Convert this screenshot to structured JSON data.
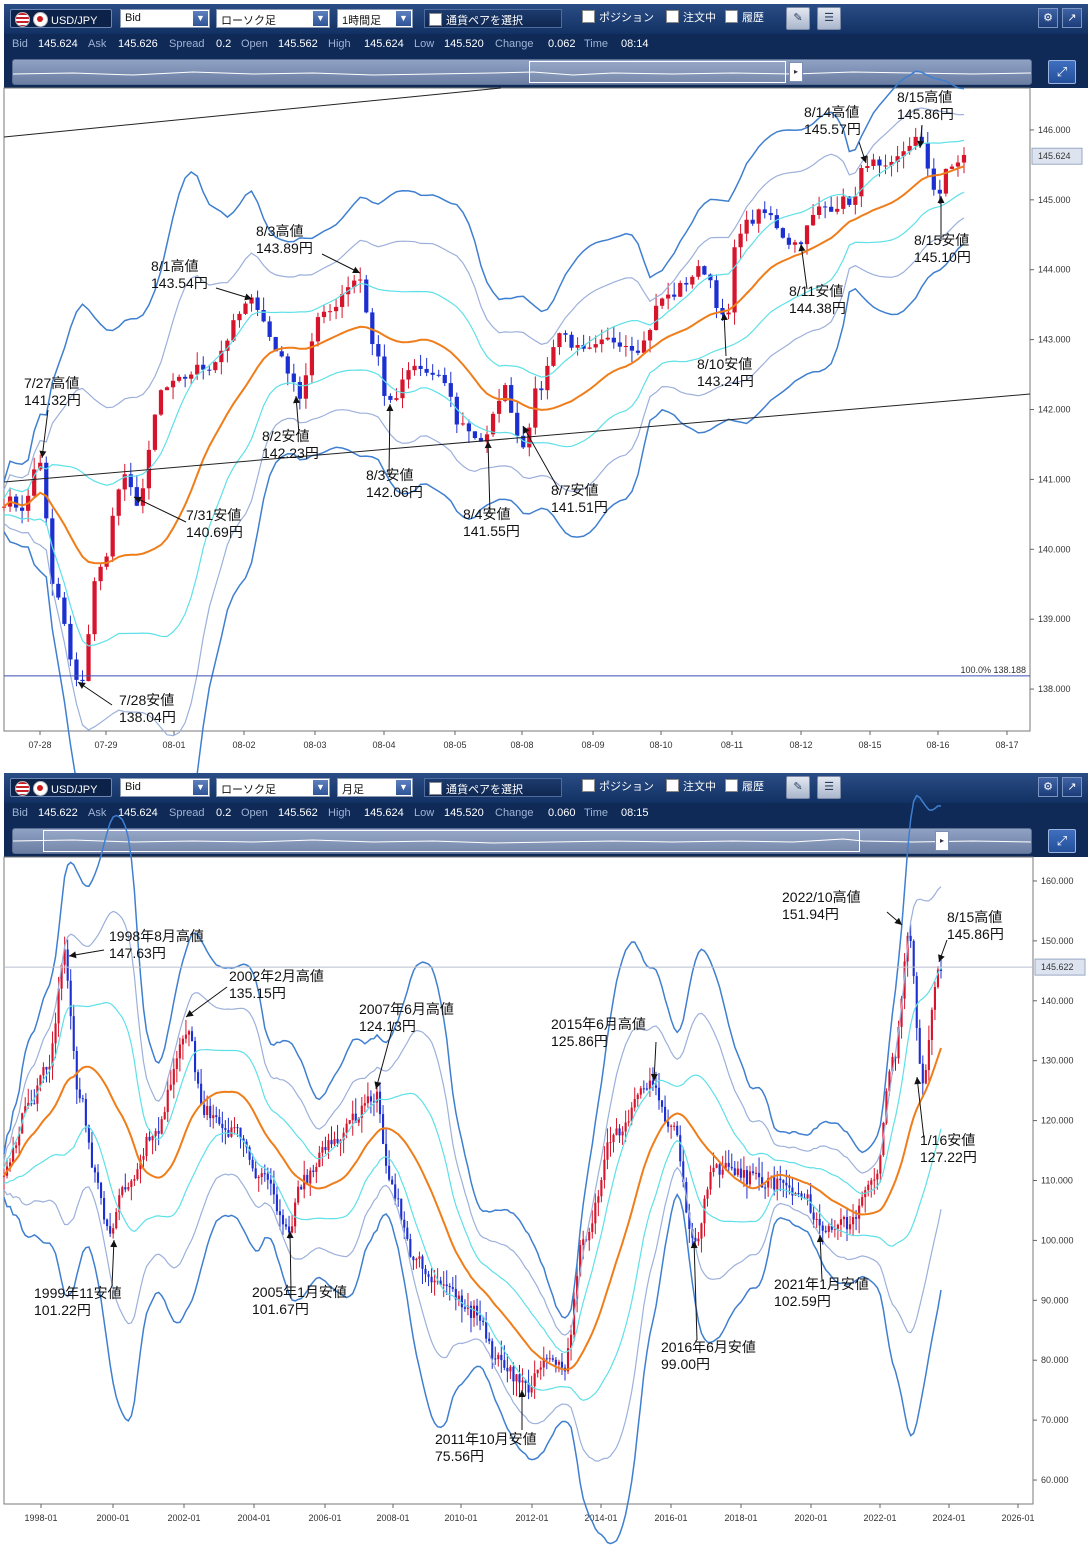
{
  "panels": [
    {
      "id": "p1",
      "toolbar": {
        "symbol": "USD/JPY",
        "price_side": "Bid",
        "chart_type": "ローソク足",
        "timeframe": "1時間足",
        "pair_select_label": "通貨ペアを選択",
        "position_label": "ポジション",
        "orders_label": "注文中",
        "history_label": "履歴"
      },
      "info": {
        "bid_label": "Bid",
        "bid": "145.624",
        "ask_label": "Ask",
        "ask": "145.626",
        "spread_label": "Spread",
        "spread": "0.2",
        "open_label": "Open",
        "open": "145.562",
        "high_label": "High",
        "high": "145.624",
        "low_label": "Low",
        "low": "145.520",
        "change_label": "Change",
        "change": "0.062",
        "time_label": "Time",
        "time": "08:14"
      },
      "current_price_tag": "145.624",
      "level_label": "100.0%  138.188",
      "chart_data": {
        "type": "candlestick",
        "instrument": "USD/JPY",
        "timeframe": "1時間足",
        "indicators": [
          "Bollinger Bands",
          "Moving Average"
        ],
        "ylim": [
          137.4,
          146.6
        ],
        "y_ticks": [
          "146.000",
          "145.000",
          "144.000",
          "143.000",
          "142.000",
          "141.000",
          "140.000",
          "139.000",
          "138.000"
        ],
        "x_ticks": [
          "07-28",
          "07-29",
          "08-01",
          "08-02",
          "08-03",
          "08-04",
          "08-05",
          "08-08",
          "08-09",
          "08-10",
          "08-11",
          "08-12",
          "08-15",
          "08-16",
          "08-17"
        ],
        "horizontal_level": 138.188,
        "current_price": 145.624,
        "anchors": [
          [
            0,
            140.7
          ],
          [
            20,
            140.6
          ],
          [
            35,
            141.3
          ],
          [
            50,
            139.4
          ],
          [
            75,
            138.04
          ],
          [
            95,
            139.7
          ],
          [
            120,
            141.0
          ],
          [
            133,
            140.69
          ],
          [
            160,
            142.3
          ],
          [
            200,
            142.6
          ],
          [
            250,
            143.54
          ],
          [
            275,
            142.8
          ],
          [
            295,
            142.23
          ],
          [
            315,
            143.3
          ],
          [
            355,
            143.89
          ],
          [
            370,
            142.9
          ],
          [
            385,
            142.06
          ],
          [
            410,
            142.6
          ],
          [
            440,
            142.4
          ],
          [
            455,
            141.8
          ],
          [
            480,
            141.55
          ],
          [
            500,
            142.3
          ],
          [
            518,
            141.51
          ],
          [
            535,
            142.3
          ],
          [
            555,
            143.1
          ],
          [
            580,
            142.8
          ],
          [
            610,
            143.0
          ],
          [
            635,
            142.9
          ],
          [
            660,
            143.6
          ],
          [
            700,
            144.0
          ],
          [
            722,
            143.24
          ],
          [
            735,
            144.6
          ],
          [
            760,
            144.8
          ],
          [
            790,
            144.38
          ],
          [
            820,
            144.9
          ],
          [
            850,
            145.0
          ],
          [
            862,
            145.57
          ],
          [
            880,
            145.4
          ],
          [
            912,
            145.86
          ],
          [
            935,
            145.1
          ],
          [
            945,
            145.45
          ],
          [
            960,
            145.62
          ]
        ],
        "annotations": [
          {
            "title": "7/27高値",
            "value": "141.32円",
            "x": 20,
            "y": 388
          },
          {
            "title": "7/28安値",
            "value": "138.04円",
            "x": 115,
            "y": 705
          },
          {
            "title": "7/31安値",
            "value": "140.69円",
            "x": 182,
            "y": 520
          },
          {
            "title": "8/1高値",
            "value": "143.54円",
            "x": 147,
            "y": 271
          },
          {
            "title": "8/2安値",
            "value": "142.23円",
            "x": 258,
            "y": 441
          },
          {
            "title": "8/3高値",
            "value": "143.89円",
            "x": 252,
            "y": 236
          },
          {
            "title": "8/3安値",
            "value": "142.06円",
            "x": 362,
            "y": 480
          },
          {
            "title": "8/4安値",
            "value": "141.55円",
            "x": 459,
            "y": 519
          },
          {
            "title": "8/7安値",
            "value": "141.51円",
            "x": 547,
            "y": 495
          },
          {
            "title": "8/10安値",
            "value": "143.24円",
            "x": 693,
            "y": 369
          },
          {
            "title": "8/11安値",
            "value": "144.38円",
            "x": 785,
            "y": 296
          },
          {
            "title": "8/14高値",
            "value": "145.57円",
            "x": 800,
            "y": 117
          },
          {
            "title": "8/15高値",
            "value": "145.86円",
            "x": 893,
            "y": 102
          },
          {
            "title": "8/15安値",
            "value": "145.10円",
            "x": 910,
            "y": 245
          }
        ]
      }
    },
    {
      "id": "p2",
      "toolbar": {
        "symbol": "USD/JPY",
        "price_side": "Bid",
        "chart_type": "ローソク足",
        "timeframe": "月足",
        "pair_select_label": "通貨ペアを選択",
        "position_label": "ポジション",
        "orders_label": "注文中",
        "history_label": "履歴"
      },
      "info": {
        "bid_label": "Bid",
        "bid": "145.622",
        "ask_label": "Ask",
        "ask": "145.624",
        "spread_label": "Spread",
        "spread": "0.2",
        "open_label": "Open",
        "open": "145.562",
        "high_label": "High",
        "high": "145.624",
        "low_label": "Low",
        "low": "145.520",
        "change_label": "Change",
        "change": "0.060",
        "time_label": "Time",
        "time": "08:15"
      },
      "current_price_tag": "145.622",
      "level_label": "",
      "chart_data": {
        "type": "candlestick",
        "instrument": "USD/JPY",
        "timeframe": "月足",
        "indicators": [
          "Bollinger Bands",
          "Moving Average"
        ],
        "ylim": [
          56.0,
          164.0
        ],
        "y_ticks": [
          "160.000",
          "150.000",
          "140.000",
          "130.000",
          "120.000",
          "110.000",
          "100.000",
          "90.000",
          "80.000",
          "70.000",
          "60.000"
        ],
        "x_ticks": [
          "1998-01",
          "2000-01",
          "2002-01",
          "2004-01",
          "2006-01",
          "2008-01",
          "2010-01",
          "2012-01",
          "2014-01",
          "2016-01",
          "2018-01",
          "2020-01",
          "2022-01",
          "2024-01",
          "2026-01"
        ],
        "horizontal_level": 145.622,
        "current_price": 145.622,
        "anchors": [
          [
            0,
            112
          ],
          [
            25,
            122
          ],
          [
            45,
            130
          ],
          [
            60,
            147.63
          ],
          [
            75,
            125
          ],
          [
            90,
            112
          ],
          [
            103,
            101.22
          ],
          [
            120,
            108
          ],
          [
            150,
            118
          ],
          [
            183,
            135.15
          ],
          [
            200,
            122
          ],
          [
            230,
            118
          ],
          [
            260,
            110
          ],
          [
            283,
            101.67
          ],
          [
            300,
            110
          ],
          [
            330,
            117
          ],
          [
            372,
            124.13
          ],
          [
            385,
            110
          ],
          [
            410,
            97
          ],
          [
            440,
            92
          ],
          [
            470,
            88
          ],
          [
            495,
            80
          ],
          [
            523,
            75.56
          ],
          [
            545,
            80
          ],
          [
            560,
            79
          ],
          [
            580,
            100
          ],
          [
            610,
            118
          ],
          [
            648,
            125.86
          ],
          [
            670,
            118
          ],
          [
            690,
            99.0
          ],
          [
            710,
            112
          ],
          [
            760,
            110
          ],
          [
            800,
            107
          ],
          [
            818,
            102.59
          ],
          [
            845,
            103
          ],
          [
            870,
            110
          ],
          [
            890,
            130
          ],
          [
            905,
            151.94
          ],
          [
            918,
            127.22
          ],
          [
            935,
            145.86
          ],
          [
            937,
            145.62
          ]
        ],
        "annotations": [
          {
            "title": "1998年8月高値",
            "value": "147.63円",
            "x": 105,
            "y": 941
          },
          {
            "title": "1999年11安値",
            "value": "101.22円",
            "x": 30,
            "y": 1298
          },
          {
            "title": "2002年2月高値",
            "value": "135.15円",
            "x": 225,
            "y": 981
          },
          {
            "title": "2005年1月安値",
            "value": "101.67円",
            "x": 248,
            "y": 1297
          },
          {
            "title": "2007年6月高値",
            "value": "124.13円",
            "x": 355,
            "y": 1014
          },
          {
            "title": "2011年10月安値",
            "value": "75.56円",
            "x": 431,
            "y": 1444
          },
          {
            "title": "2015年6月高値",
            "value": "125.86円",
            "x": 547,
            "y": 1029
          },
          {
            "title": "2016年6月安値",
            "value": "99.00円",
            "x": 657,
            "y": 1352
          },
          {
            "title": "2021年1月安値",
            "value": "102.59円",
            "x": 770,
            "y": 1289
          },
          {
            "title": "2022/10高値",
            "value": "151.94円",
            "x": 778,
            "y": 902
          },
          {
            "title": "8/15高値",
            "value": "145.86円",
            "x": 943,
            "y": 922
          },
          {
            "title": "1/16安値",
            "value": "127.22円",
            "x": 916,
            "y": 1145
          }
        ]
      }
    }
  ]
}
